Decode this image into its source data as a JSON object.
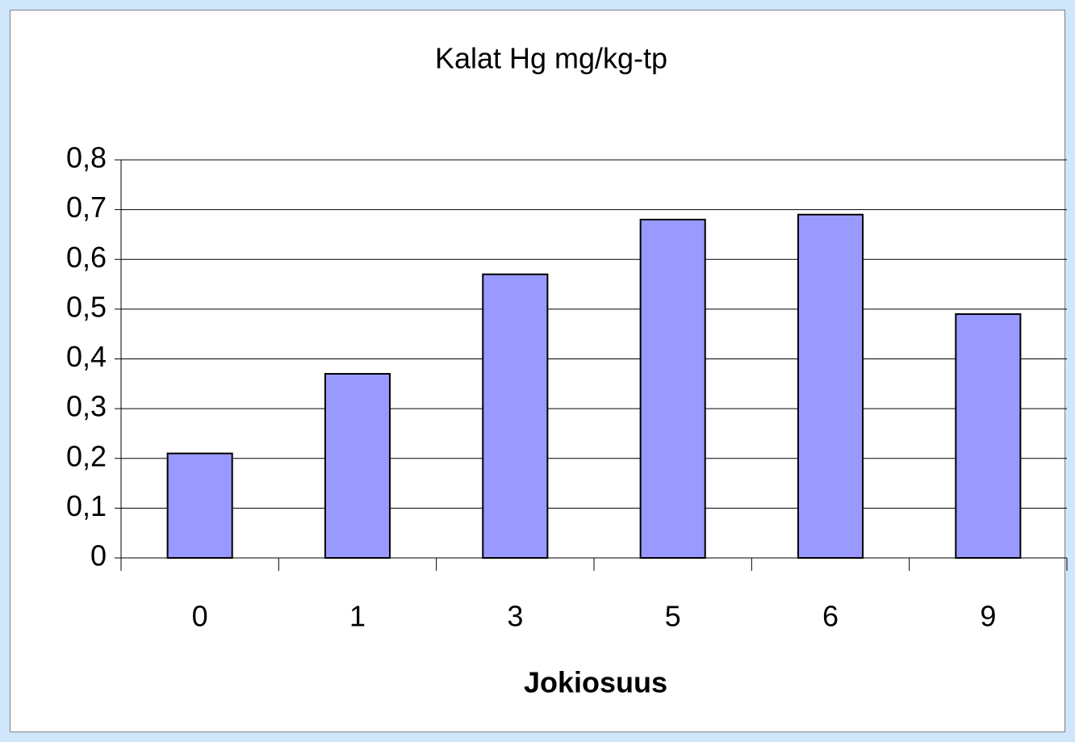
{
  "chart_data": {
    "type": "bar",
    "title": "Kalat Hg mg/kg-tp",
    "x_label": "Jokiosuus",
    "categories": [
      "0",
      "1",
      "3",
      "5",
      "6",
      "9"
    ],
    "values": [
      0.21,
      0.37,
      0.57,
      0.68,
      0.69,
      0.49
    ],
    "color": "#9999ff",
    "ylim": [
      0,
      0.8
    ],
    "yticks": [
      0,
      {
        "value": 0.1,
        "label": "0,1"
      },
      {
        "value": 0.2,
        "label": "0,2"
      },
      {
        "value": 0.3,
        "label": "0,3"
      },
      {
        "value": 0.4,
        "label": "0,4"
      },
      {
        "value": 0.5,
        "label": "0,5"
      },
      {
        "value": 0.6,
        "label": "0,6"
      },
      {
        "value": 0.7,
        "label": "0,7"
      },
      {
        "value": 0.8,
        "label": "0,8"
      }
    ],
    "grid": true
  }
}
